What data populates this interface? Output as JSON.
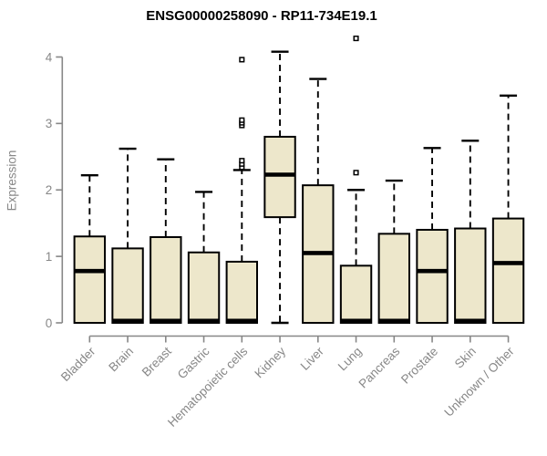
{
  "chart_data": {
    "type": "boxplot",
    "title": "ENSG00000258090 - RP11-734E19.1",
    "ylabel": "Expression",
    "xlabel": "",
    "ylim": [
      0,
      4.35
    ],
    "yticks": [
      0,
      1,
      2,
      3,
      4
    ],
    "grid": false,
    "legend": "none",
    "categories": [
      "Bladder",
      "Brain",
      "Breast",
      "Gastric",
      "Hematopoietic cells",
      "Kidney",
      "Liver",
      "Lung",
      "Pancreas",
      "Prostate",
      "Skin",
      "Unknown / Other"
    ],
    "series": [
      {
        "label": "Bladder",
        "whisker_low": 0,
        "q1": 0,
        "median": 0.78,
        "q3": 1.3,
        "whisker_high": 2.22,
        "outliers": []
      },
      {
        "label": "Brain",
        "whisker_low": 0,
        "q1": 0,
        "median": 0.03,
        "q3": 1.12,
        "whisker_high": 2.62,
        "outliers": []
      },
      {
        "label": "Breast",
        "whisker_low": 0,
        "q1": 0,
        "median": 0.03,
        "q3": 1.29,
        "whisker_high": 2.46,
        "outliers": []
      },
      {
        "label": "Gastric",
        "whisker_low": 0,
        "q1": 0,
        "median": 0.03,
        "q3": 1.06,
        "whisker_high": 1.97,
        "outliers": []
      },
      {
        "label": "Hematopoietic cells",
        "whisker_low": 0,
        "q1": 0,
        "median": 0.03,
        "q3": 0.92,
        "whisker_high": 2.3,
        "outliers": [
          2.34,
          2.39,
          2.44,
          2.97,
          3.01,
          3.05,
          3.96
        ]
      },
      {
        "label": "Kidney",
        "whisker_low": 0,
        "q1": 1.59,
        "median": 2.23,
        "q3": 2.8,
        "whisker_high": 4.08,
        "outliers": []
      },
      {
        "label": "Liver",
        "whisker_low": 0,
        "q1": 0,
        "median": 1.05,
        "q3": 2.07,
        "whisker_high": 3.67,
        "outliers": []
      },
      {
        "label": "Lung",
        "whisker_low": 0,
        "q1": 0,
        "median": 0.03,
        "q3": 0.86,
        "whisker_high": 2.0,
        "outliers": [
          2.26,
          4.28
        ]
      },
      {
        "label": "Pancreas",
        "whisker_low": 0,
        "q1": 0,
        "median": 0.03,
        "q3": 1.34,
        "whisker_high": 2.14,
        "outliers": []
      },
      {
        "label": "Prostate",
        "whisker_low": 0,
        "q1": 0,
        "median": 0.78,
        "q3": 1.4,
        "whisker_high": 2.63,
        "outliers": []
      },
      {
        "label": "Skin",
        "whisker_low": 0,
        "q1": 0,
        "median": 0.03,
        "q3": 1.42,
        "whisker_high": 2.74,
        "outliers": []
      },
      {
        "label": "Unknown / Other",
        "whisker_low": 0,
        "q1": 0,
        "median": 0.9,
        "q3": 1.57,
        "whisker_high": 3.42,
        "outliers": []
      }
    ],
    "colors": {
      "box_fill": "#EDE7CB",
      "box_stroke": "#000000",
      "median": "#000000",
      "whisker": "#000000",
      "outlier_stroke": "#000000",
      "outlier_fill": "#ffffff",
      "axis": "#878787",
      "tick_label": "#878787",
      "title": "#000000",
      "background": "#ffffff"
    }
  }
}
